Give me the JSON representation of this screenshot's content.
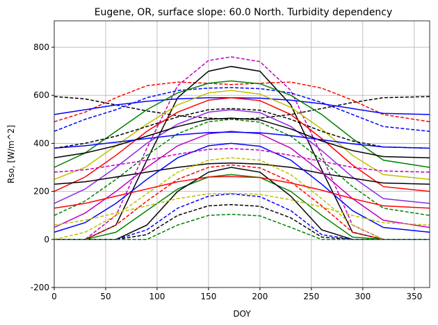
{
  "chart_data": {
    "type": "line",
    "title": "Eugene, OR, surface slope: 60.0 North. Turbidity dependency",
    "xlabel": "DOY",
    "ylabel": "Rso, [W/m^2]",
    "x": [
      0,
      30,
      60,
      90,
      120,
      150,
      172,
      200,
      230,
      260,
      290,
      320,
      365
    ],
    "xlim": [
      0,
      365
    ],
    "ylim": [
      -200,
      910
    ],
    "xticks": [
      0,
      50,
      100,
      150,
      200,
      250,
      300,
      350
    ],
    "yticks": [
      -200,
      0,
      200,
      400,
      600,
      800
    ],
    "grid": true,
    "series": [
      {
        "color": "#000000",
        "dashed": true,
        "values": [
          595,
          585,
          560,
          535,
          515,
          505,
          500,
          505,
          520,
          545,
          570,
          590,
          595
        ]
      },
      {
        "color": "#ff0000",
        "dashed": true,
        "values": [
          490,
          530,
          590,
          640,
          655,
          650,
          645,
          650,
          655,
          630,
          580,
          520,
          490
        ]
      },
      {
        "color": "#bf00bf",
        "dashed": true,
        "values": [
          0,
          0,
          100,
          380,
          640,
          745,
          760,
          740,
          620,
          350,
          60,
          0,
          0
        ]
      },
      {
        "color": "#000000",
        "dashed": false,
        "values": [
          0,
          0,
          60,
          330,
          590,
          700,
          720,
          700,
          560,
          290,
          30,
          0,
          0
        ]
      },
      {
        "color": "#0000ff",
        "dashed": false,
        "values": [
          520,
          540,
          560,
          575,
          585,
          590,
          590,
          588,
          580,
          565,
          545,
          525,
          520
        ]
      },
      {
        "color": "#0000ff",
        "dashed": true,
        "values": [
          450,
          500,
          540,
          590,
          620,
          630,
          632,
          628,
          610,
          570,
          520,
          470,
          450
        ]
      },
      {
        "color": "#008000",
        "dashed": false,
        "values": [
          300,
          360,
          450,
          540,
          610,
          650,
          660,
          648,
          600,
          520,
          420,
          330,
          300
        ]
      },
      {
        "color": "#bfbf00",
        "dashed": false,
        "values": [
          250,
          300,
          390,
          480,
          560,
          610,
          620,
          605,
          550,
          460,
          350,
          270,
          250
        ]
      },
      {
        "color": "#000000",
        "dashed": true,
        "values": [
          380,
          400,
          430,
          470,
          510,
          540,
          545,
          538,
          500,
          450,
          410,
          385,
          380
        ]
      },
      {
        "color": "#ff0000",
        "dashed": false,
        "values": [
          200,
          260,
          350,
          450,
          530,
          580,
          590,
          578,
          520,
          420,
          310,
          220,
          200
        ]
      },
      {
        "color": "#8a2be2",
        "dashed": false,
        "values": [
          150,
          210,
          300,
          400,
          480,
          530,
          540,
          528,
          470,
          370,
          260,
          170,
          150
        ]
      },
      {
        "color": "#008000",
        "dashed": true,
        "values": [
          100,
          160,
          250,
          350,
          440,
          490,
          500,
          488,
          430,
          330,
          220,
          130,
          100
        ]
      },
      {
        "color": "#000000",
        "dashed": false,
        "values": [
          230,
          240,
          260,
          280,
          300,
          315,
          318,
          314,
          300,
          275,
          255,
          235,
          230
        ]
      },
      {
        "color": "#bf00bf",
        "dashed": false,
        "values": [
          50,
          110,
          200,
          300,
          390,
          440,
          450,
          440,
          380,
          280,
          170,
          80,
          50
        ]
      },
      {
        "color": "#0000ff",
        "dashed": false,
        "values": [
          30,
          70,
          150,
          250,
          340,
          390,
          400,
          388,
          330,
          230,
          120,
          50,
          30
        ]
      },
      {
        "color": "#bfbf00",
        "dashed": true,
        "values": [
          0,
          30,
          100,
          190,
          280,
          330,
          340,
          330,
          270,
          170,
          60,
          0,
          0
        ]
      },
      {
        "color": "#ff0000",
        "dashed": true,
        "values": [
          0,
          0,
          60,
          160,
          250,
          300,
          310,
          298,
          240,
          140,
          30,
          0,
          0
        ]
      },
      {
        "color": "#008000",
        "dashed": false,
        "values": [
          0,
          0,
          30,
          120,
          210,
          260,
          270,
          258,
          200,
          100,
          10,
          0,
          0
        ]
      },
      {
        "color": "#000000",
        "dashed": false,
        "values": [
          0,
          0,
          0,
          60,
          200,
          280,
          300,
          280,
          180,
          40,
          0,
          0,
          0
        ]
      },
      {
        "color": "#0000ff",
        "dashed": true,
        "values": [
          0,
          0,
          0,
          40,
          130,
          180,
          190,
          178,
          120,
          20,
          0,
          0,
          0
        ]
      },
      {
        "color": "#000000",
        "dashed": true,
        "values": [
          0,
          0,
          0,
          20,
          100,
          140,
          145,
          138,
          90,
          10,
          0,
          0,
          0
        ]
      },
      {
        "color": "#008000",
        "dashed": true,
        "values": [
          0,
          0,
          0,
          0,
          60,
          100,
          105,
          98,
          50,
          0,
          0,
          0,
          0
        ]
      },
      {
        "color": "#000000",
        "dashed": false,
        "values": [
          340,
          360,
          390,
          430,
          470,
          500,
          505,
          498,
          460,
          410,
          370,
          345,
          340
        ]
      },
      {
        "color": "#ff0000",
        "dashed": false,
        "values": [
          130,
          150,
          180,
          210,
          240,
          260,
          262,
          258,
          235,
          205,
          170,
          140,
          130
        ]
      },
      {
        "color": "#bfbf00",
        "dashed": true,
        "values": [
          60,
          80,
          110,
          140,
          170,
          190,
          192,
          188,
          165,
          135,
          100,
          70,
          60
        ]
      },
      {
        "color": "#0000ff",
        "dashed": false,
        "values": [
          380,
          390,
          405,
          420,
          435,
          445,
          447,
          444,
          432,
          415,
          398,
          385,
          380
        ]
      },
      {
        "color": "#bf00bf",
        "dashed": true,
        "values": [
          280,
          290,
          310,
          330,
          355,
          375,
          378,
          372,
          350,
          325,
          300,
          285,
          280
        ]
      }
    ]
  }
}
